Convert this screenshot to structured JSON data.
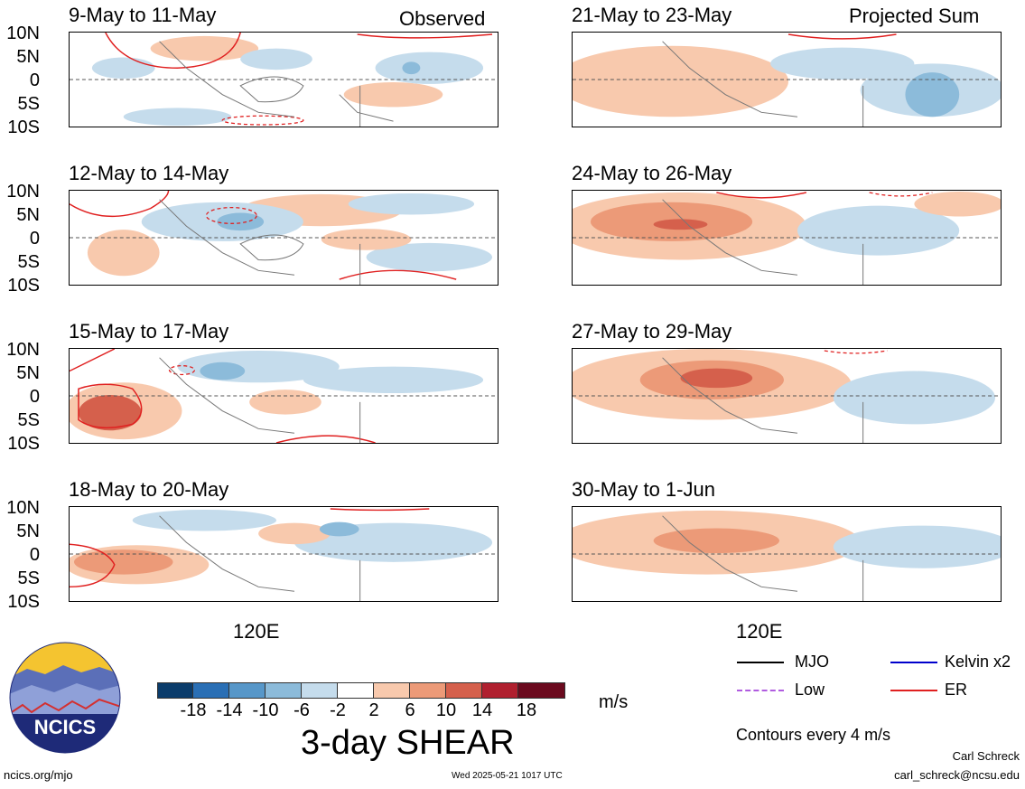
{
  "observed_label": "Observed",
  "projected_label": "Projected Sum",
  "lat_labels": [
    "10N",
    "5N",
    "0",
    "5S",
    "10S"
  ],
  "lon_label": "120E",
  "panels": [
    {
      "title": "9-May to 11-May"
    },
    {
      "title": "12-May to 14-May"
    },
    {
      "title": "15-May to 17-May"
    },
    {
      "title": "18-May to 20-May"
    },
    {
      "title": "21-May to 23-May"
    },
    {
      "title": "24-May to 26-May"
    },
    {
      "title": "27-May to 29-May"
    },
    {
      "title": "30-May to 1-Jun"
    }
  ],
  "colorbar": {
    "ticks": [
      "-18",
      "-14",
      "-10",
      "-6",
      "-2",
      "2",
      "6",
      "10",
      "14",
      "18"
    ],
    "colors": [
      "#0b3c6b",
      "#2a6fb5",
      "#5797c9",
      "#8cbbda",
      "#c5dcec",
      "#ffffff",
      "#f8c9ad",
      "#ec9a78",
      "#d5604c",
      "#b0202f",
      "#6b0a1e"
    ],
    "units": "m/s",
    "title": "3-day SHEAR"
  },
  "legend": {
    "mjo": "MJO",
    "kelvin": "Kelvin x2",
    "low": "Low",
    "er": "ER",
    "colors": {
      "mjo": "#000000",
      "kelvin": "#0000cc",
      "low": "#b05ce0",
      "er": "#e02020"
    }
  },
  "contour_note": "Contours every 4 m/s",
  "footer": {
    "logo_text": "NCICS",
    "url": "ncics.org/mjo",
    "timestamp": "Wed 2025-05-21 1017 UTC",
    "author": "Carl Schreck",
    "email": "carl_schreck@ncsu.edu"
  }
}
